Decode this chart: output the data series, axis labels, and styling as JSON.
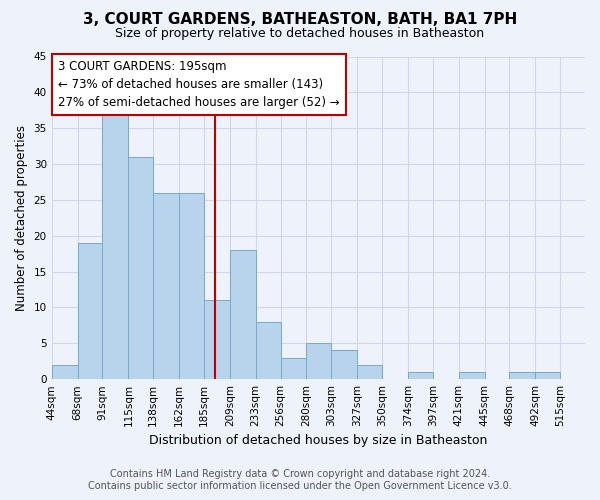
{
  "title": "3, COURT GARDENS, BATHEASTON, BATH, BA1 7PH",
  "subtitle": "Size of property relative to detached houses in Batheaston",
  "xlabel": "Distribution of detached houses by size in Batheaston",
  "ylabel": "Number of detached properties",
  "bin_labels": [
    "44sqm",
    "68sqm",
    "91sqm",
    "115sqm",
    "138sqm",
    "162sqm",
    "185sqm",
    "209sqm",
    "233sqm",
    "256sqm",
    "280sqm",
    "303sqm",
    "327sqm",
    "350sqm",
    "374sqm",
    "397sqm",
    "421sqm",
    "445sqm",
    "468sqm",
    "492sqm",
    "515sqm"
  ],
  "bin_edges": [
    44,
    68,
    91,
    115,
    138,
    162,
    185,
    209,
    233,
    256,
    280,
    303,
    327,
    350,
    374,
    397,
    421,
    445,
    468,
    492,
    515,
    538
  ],
  "bar_heights": [
    2,
    19,
    37,
    31,
    26,
    26,
    11,
    18,
    8,
    3,
    5,
    4,
    2,
    0,
    1,
    0,
    1,
    0,
    1,
    1,
    0
  ],
  "bar_color": "#b8d4ec",
  "bar_edge_color": "#7aaac8",
  "grid_color": "#d0d8e8",
  "bg_color": "#eef2fa",
  "property_line_x": 195,
  "property_line_color": "#bb0000",
  "annotation_text": "3 COURT GARDENS: 195sqm\n← 73% of detached houses are smaller (143)\n27% of semi-detached houses are larger (52) →",
  "annotation_box_color": "#ffffff",
  "annotation_box_edge": "#bb0000",
  "footer_line1": "Contains HM Land Registry data © Crown copyright and database right 2024.",
  "footer_line2": "Contains public sector information licensed under the Open Government Licence v3.0.",
  "ylim": [
    0,
    45
  ],
  "xlim_left": 44,
  "xlim_right": 538,
  "title_fontsize": 11,
  "subtitle_fontsize": 9,
  "xlabel_fontsize": 9,
  "ylabel_fontsize": 8.5,
  "tick_fontsize": 7.5,
  "annotation_fontsize": 8.5,
  "footer_fontsize": 7
}
